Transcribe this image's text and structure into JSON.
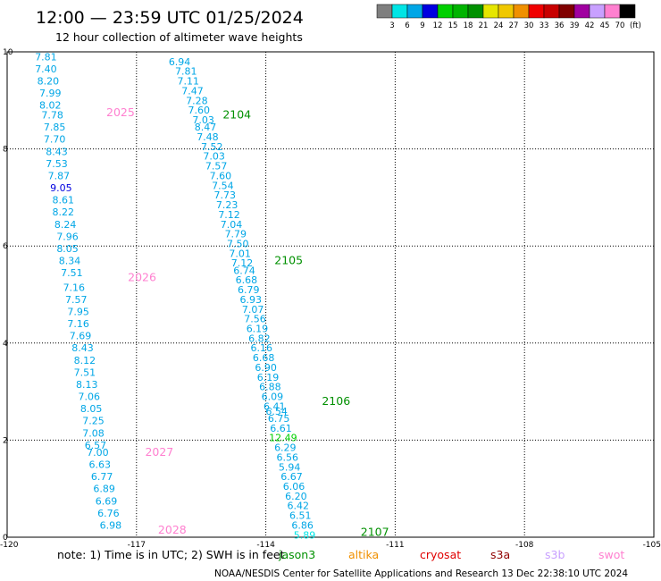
{
  "title": "12:00 — 23:59 UTC 01/25/2024",
  "subtitle": "12 hour collection of altimeter wave heights",
  "colorbar": {
    "unit": "(ft)",
    "labels": [
      "3",
      "6",
      "9",
      "12",
      "15",
      "18",
      "21",
      "24",
      "27",
      "30",
      "33",
      "36",
      "39",
      "42",
      "45",
      "70"
    ],
    "colors": [
      "#7f7f7f",
      "#00e5e5",
      "#00a6e6",
      "#0000e0",
      "#00d000",
      "#00b400",
      "#009000",
      "#e6e600",
      "#f0c800",
      "#f09000",
      "#f00000",
      "#c80000",
      "#800000",
      "#a000a0",
      "#c8a0ff",
      "#ff80d0",
      "#000000"
    ]
  },
  "note": "note:  1) Time is in UTC;  2) SWH is in feet",
  "satellites": [
    {
      "name": "jason3",
      "color": "#009000"
    },
    {
      "name": "altika",
      "color": "#f09000"
    },
    {
      "name": "cryosat",
      "color": "#e00000"
    },
    {
      "name": "s3a",
      "color": "#900000"
    },
    {
      "name": "s3b",
      "color": "#c8a0ff"
    },
    {
      "name": "swot",
      "color": "#ff80d0"
    }
  ],
  "credit": "NOAA/NESDIS Center for Satellite Applications and Research     13 Dec 22:38:10 UTC 2024",
  "chart_data": {
    "type": "scatter",
    "xlim": [
      -120,
      -105
    ],
    "ylim": [
      0,
      10
    ],
    "x_ticks": [
      "-120",
      "-117",
      "-114",
      "-111",
      "-108",
      "-105"
    ],
    "y_ticks": [
      "0",
      "2",
      "4",
      "6",
      "8",
      "10"
    ],
    "grid": true,
    "unit": "ft",
    "passes": [
      {
        "label": "2025",
        "color": "#ff80d0",
        "x": -117.7,
        "y": 8.75
      },
      {
        "label": "2026",
        "color": "#ff80d0",
        "x": -117.2,
        "y": 5.35
      },
      {
        "label": "2027",
        "color": "#ff80d0",
        "x": -116.8,
        "y": 1.75
      },
      {
        "label": "2028",
        "color": "#ff80d0",
        "x": -116.5,
        "y": 0.15
      },
      {
        "label": "2104",
        "color": "#009000",
        "x": -115.0,
        "y": 8.7
      },
      {
        "label": "2105",
        "color": "#009000",
        "x": -113.8,
        "y": 5.7
      },
      {
        "label": "2106",
        "color": "#009000",
        "x": -112.7,
        "y": 2.8
      },
      {
        "label": "2107",
        "color": "#009000",
        "x": -111.8,
        "y": 0.1
      }
    ],
    "points": [
      {
        "x": -119.1,
        "y": 9.9,
        "v": "7.81",
        "c": "#00a6e6"
      },
      {
        "x": -119.1,
        "y": 9.65,
        "v": "7.40",
        "c": "#00a6e6"
      },
      {
        "x": -119.05,
        "y": 9.4,
        "v": "8.20",
        "c": "#00a6e6"
      },
      {
        "x": -119.0,
        "y": 9.15,
        "v": "7.99",
        "c": "#00a6e6"
      },
      {
        "x": -119.0,
        "y": 8.9,
        "v": "8.02",
        "c": "#00a6e6"
      },
      {
        "x": -118.95,
        "y": 8.7,
        "v": "7.78",
        "c": "#00a6e6"
      },
      {
        "x": -118.9,
        "y": 8.45,
        "v": "7.85",
        "c": "#00a6e6"
      },
      {
        "x": -118.9,
        "y": 8.2,
        "v": "7.70",
        "c": "#00a6e6"
      },
      {
        "x": -118.85,
        "y": 7.95,
        "v": "8.43",
        "c": "#00a6e6"
      },
      {
        "x": -118.85,
        "y": 7.7,
        "v": "7.53",
        "c": "#00a6e6"
      },
      {
        "x": -118.8,
        "y": 7.45,
        "v": "7.87",
        "c": "#00a6e6"
      },
      {
        "x": -118.75,
        "y": 7.2,
        "v": "9.05",
        "c": "#0000e0"
      },
      {
        "x": -118.7,
        "y": 6.95,
        "v": "8.61",
        "c": "#00a6e6"
      },
      {
        "x": -118.7,
        "y": 6.7,
        "v": "8.22",
        "c": "#00a6e6"
      },
      {
        "x": -118.65,
        "y": 6.45,
        "v": "8.24",
        "c": "#00a6e6"
      },
      {
        "x": -118.6,
        "y": 6.2,
        "v": "7.96",
        "c": "#00a6e6"
      },
      {
        "x": -118.6,
        "y": 5.95,
        "v": "8.05",
        "c": "#00a6e6"
      },
      {
        "x": -118.55,
        "y": 5.7,
        "v": "8.34",
        "c": "#00a6e6"
      },
      {
        "x": -118.5,
        "y": 5.45,
        "v": "7.51",
        "c": "#00a6e6"
      },
      {
        "x": -118.45,
        "y": 5.15,
        "v": "7.16",
        "c": "#00a6e6"
      },
      {
        "x": -118.4,
        "y": 4.9,
        "v": "7.57",
        "c": "#00a6e6"
      },
      {
        "x": -118.35,
        "y": 4.65,
        "v": "7.95",
        "c": "#00a6e6"
      },
      {
        "x": -118.35,
        "y": 4.4,
        "v": "7.16",
        "c": "#00a6e6"
      },
      {
        "x": -118.3,
        "y": 4.15,
        "v": "7.69",
        "c": "#00a6e6"
      },
      {
        "x": -118.25,
        "y": 3.9,
        "v": "8.43",
        "c": "#00a6e6"
      },
      {
        "x": -118.2,
        "y": 3.65,
        "v": "8.12",
        "c": "#00a6e6"
      },
      {
        "x": -118.2,
        "y": 3.4,
        "v": "7.51",
        "c": "#00a6e6"
      },
      {
        "x": -118.15,
        "y": 3.15,
        "v": "8.13",
        "c": "#00a6e6"
      },
      {
        "x": -118.1,
        "y": 2.9,
        "v": "7.06",
        "c": "#00a6e6"
      },
      {
        "x": -118.05,
        "y": 2.65,
        "v": "8.05",
        "c": "#00a6e6"
      },
      {
        "x": -118.0,
        "y": 2.4,
        "v": "7.25",
        "c": "#00a6e6"
      },
      {
        "x": -118.0,
        "y": 2.15,
        "v": "7.08",
        "c": "#00a6e6"
      },
      {
        "x": -117.95,
        "y": 1.9,
        "v": "6.57",
        "c": "#00a6e6"
      },
      {
        "x": -117.9,
        "y": 1.75,
        "v": "7.00",
        "c": "#00a6e6"
      },
      {
        "x": -117.85,
        "y": 1.5,
        "v": "6.63",
        "c": "#00a6e6"
      },
      {
        "x": -117.8,
        "y": 1.25,
        "v": "6.77",
        "c": "#00a6e6"
      },
      {
        "x": -117.75,
        "y": 1.0,
        "v": "6.89",
        "c": "#00a6e6"
      },
      {
        "x": -117.7,
        "y": 0.75,
        "v": "6.69",
        "c": "#00a6e6"
      },
      {
        "x": -117.65,
        "y": 0.5,
        "v": "6.76",
        "c": "#00a6e6"
      },
      {
        "x": -117.6,
        "y": 0.25,
        "v": "6.98",
        "c": "#00a6e6"
      },
      {
        "x": -116.0,
        "y": 9.8,
        "v": "6.94",
        "c": "#00a6e6"
      },
      {
        "x": -115.85,
        "y": 9.6,
        "v": "7.81",
        "c": "#00a6e6"
      },
      {
        "x": -115.8,
        "y": 9.4,
        "v": "7.11",
        "c": "#00a6e6"
      },
      {
        "x": -115.7,
        "y": 9.2,
        "v": "7.47",
        "c": "#00a6e6"
      },
      {
        "x": -115.6,
        "y": 9.0,
        "v": "7.28",
        "c": "#00a6e6"
      },
      {
        "x": -115.55,
        "y": 8.8,
        "v": "7.60",
        "c": "#00a6e6"
      },
      {
        "x": -115.45,
        "y": 8.6,
        "v": "7.03",
        "c": "#00a6e6"
      },
      {
        "x": -115.4,
        "y": 8.45,
        "v": "8.47",
        "c": "#00a6e6"
      },
      {
        "x": -115.35,
        "y": 8.25,
        "v": "7.48",
        "c": "#00a6e6"
      },
      {
        "x": -115.25,
        "y": 8.05,
        "v": "7.52",
        "c": "#00a6e6"
      },
      {
        "x": -115.2,
        "y": 7.85,
        "v": "7.03",
        "c": "#00a6e6"
      },
      {
        "x": -115.15,
        "y": 7.65,
        "v": "7.57",
        "c": "#00a6e6"
      },
      {
        "x": -115.05,
        "y": 7.45,
        "v": "7.60",
        "c": "#00a6e6"
      },
      {
        "x": -115.0,
        "y": 7.25,
        "v": "7.54",
        "c": "#00a6e6"
      },
      {
        "x": -114.95,
        "y": 7.05,
        "v": "7.73",
        "c": "#00a6e6"
      },
      {
        "x": -114.9,
        "y": 6.85,
        "v": "7.23",
        "c": "#00a6e6"
      },
      {
        "x": -114.85,
        "y": 6.65,
        "v": "7.12",
        "c": "#00a6e6"
      },
      {
        "x": -114.8,
        "y": 6.45,
        "v": "7.04",
        "c": "#00a6e6"
      },
      {
        "x": -114.7,
        "y": 6.25,
        "v": "7.79",
        "c": "#00a6e6"
      },
      {
        "x": -114.65,
        "y": 6.05,
        "v": "7.50",
        "c": "#00a6e6"
      },
      {
        "x": -114.6,
        "y": 5.85,
        "v": "7.01",
        "c": "#00a6e6"
      },
      {
        "x": -114.55,
        "y": 5.65,
        "v": "7.12",
        "c": "#00a6e6"
      },
      {
        "x": -114.5,
        "y": 5.5,
        "v": "6.74",
        "c": "#00a6e6"
      },
      {
        "x": -114.45,
        "y": 5.3,
        "v": "6.68",
        "c": "#00a6e6"
      },
      {
        "x": -114.4,
        "y": 5.1,
        "v": "6.79",
        "c": "#00a6e6"
      },
      {
        "x": -114.35,
        "y": 4.9,
        "v": "6.93",
        "c": "#00a6e6"
      },
      {
        "x": -114.3,
        "y": 4.7,
        "v": "7.07",
        "c": "#00a6e6"
      },
      {
        "x": -114.25,
        "y": 4.5,
        "v": "7.56",
        "c": "#00a6e6"
      },
      {
        "x": -114.2,
        "y": 4.3,
        "v": "6.19",
        "c": "#00a6e6"
      },
      {
        "x": -114.15,
        "y": 4.1,
        "v": "6.82",
        "c": "#00a6e6"
      },
      {
        "x": -114.1,
        "y": 3.9,
        "v": "6.16",
        "c": "#00a6e6"
      },
      {
        "x": -114.05,
        "y": 3.7,
        "v": "6.68",
        "c": "#00a6e6"
      },
      {
        "x": -114.0,
        "y": 3.5,
        "v": "6.90",
        "c": "#00a6e6"
      },
      {
        "x": -113.95,
        "y": 3.3,
        "v": "6.19",
        "c": "#00a6e6"
      },
      {
        "x": -113.9,
        "y": 3.1,
        "v": "6.88",
        "c": "#00a6e6"
      },
      {
        "x": -113.85,
        "y": 2.9,
        "v": "6.09",
        "c": "#00a6e6"
      },
      {
        "x": -113.8,
        "y": 2.7,
        "v": "6.41",
        "c": "#00a6e6"
      },
      {
        "x": -113.75,
        "y": 2.6,
        "v": "6.54",
        "c": "#00a6e6"
      },
      {
        "x": -113.7,
        "y": 2.45,
        "v": "6.75",
        "c": "#00a6e6"
      },
      {
        "x": -113.65,
        "y": 2.25,
        "v": "6.61",
        "c": "#00a6e6"
      },
      {
        "x": -113.6,
        "y": 2.05,
        "v": "12.49",
        "c": "#00d000"
      },
      {
        "x": -113.55,
        "y": 1.85,
        "v": "6.29",
        "c": "#00a6e6"
      },
      {
        "x": -113.5,
        "y": 1.65,
        "v": "6.56",
        "c": "#00a6e6"
      },
      {
        "x": -113.45,
        "y": 1.45,
        "v": "5.94",
        "c": "#00a6e6"
      },
      {
        "x": -113.4,
        "y": 1.25,
        "v": "6.67",
        "c": "#00a6e6"
      },
      {
        "x": -113.35,
        "y": 1.05,
        "v": "6.06",
        "c": "#00a6e6"
      },
      {
        "x": -113.3,
        "y": 0.85,
        "v": "6.20",
        "c": "#00a6e6"
      },
      {
        "x": -113.25,
        "y": 0.65,
        "v": "6.42",
        "c": "#00a6e6"
      },
      {
        "x": -113.2,
        "y": 0.45,
        "v": "6.51",
        "c": "#00a6e6"
      },
      {
        "x": -113.15,
        "y": 0.25,
        "v": "6.86",
        "c": "#00a6e6"
      },
      {
        "x": -113.1,
        "y": 0.05,
        "v": "5.89",
        "c": "#00e5e5"
      }
    ]
  }
}
